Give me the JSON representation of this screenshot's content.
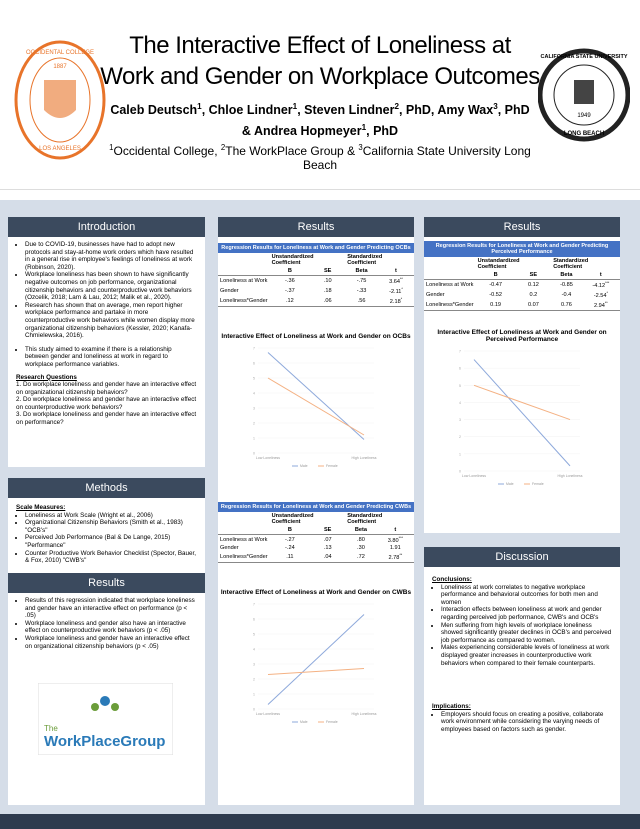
{
  "header": {
    "title": "The Interactive Effect of Loneliness at Work and Gender on Workplace Outcomes",
    "authors": [
      {
        "text": "Caleb Deutsch",
        "sup": "1"
      },
      {
        "text": ", Chloe Lindner",
        "sup": "1"
      },
      {
        "text": ", Steven Lindner",
        "sup": "2"
      },
      {
        "text": ", PhD, Amy Wax",
        "sup": "3"
      },
      {
        "text": ", PhD & Andrea Hopmeyer",
        "sup": "1"
      },
      {
        "text": ", PhD"
      }
    ],
    "affiliations": [
      {
        "sup": "1",
        "text": "Occidental College, "
      },
      {
        "sup": "2",
        "text": "The WorkPlace Group & "
      },
      {
        "sup": "3",
        "text": "California State University Long Beach"
      }
    ],
    "logo_left": {
      "top": "OCCIDENTAL COLLEGE",
      "year": "1887",
      "bottom": "LOS ANGELES"
    },
    "logo_right": {
      "top": "CALIFORNIA STATE UNIVERSITY",
      "year": "1949",
      "bottom": "LONG BEACH"
    }
  },
  "intro": {
    "heading": "Introduction",
    "bullets": [
      "Due to COVID-19, businesses have had to adopt new protocols and stay-at-home work orders which have resulted in a general rise in employee's feelings of loneliness at work (Robinson, 2020).",
      "Workplace loneliness has been shown to have significantly negative outcomes on job performance, organizational citizenship behaviors and counterproductive work behaviors (Ozcelik, 2018; Lam & Lau, 2012; Malik et al., 2020).",
      "Research has shown that on average, men report higher workplace performance and partake in more counterproductive work behaviors while women display more organizational citizenship behaviors (Kessler, 2020; Kanafa-Chmielewska, 2016)."
    ],
    "aim": "This study aimed to examine if there is a relationship between gender and loneliness at work in regard to workplace performance variables.",
    "rq_heading": "Research Questions",
    "rq": [
      "1. Do workplace loneliness and gender have an interactive effect on organizational citizenship behaviors?",
      "2. Do workplace loneliness and gender have an interactive effect on counterproductive work behaviors?",
      "3. Do workplace loneliness and gender have an interactive effect on performance?"
    ]
  },
  "methods": {
    "heading": "Methods",
    "subheading": "Scale Measures:",
    "bullets": [
      "Loneliness at Work Scale (Wright et al., 2006)",
      "Organizational Citizenship Behaviors (Smith et al., 1983) \"OCB's\"",
      "Perceived Job Performance (Bal & De Lange, 2015) \"Performance\"",
      "Counter Productive Work Behavior Checklist (Spector, Bauer, & Fox, 2010) \"CWB's\""
    ]
  },
  "results_left": {
    "heading": "Results",
    "bullets": [
      "Results of this regression indicated that workplace loneliness and gender have an interactive effect on performance (p < .05)",
      "Workplace loneliness and gender also have an interactive effect on counterproductive work behaviors (p < .05)",
      "Workplace loneliness and gender have an interactive effect on organizational citizenship behaviors (p < .05)"
    ]
  },
  "logo_wpg": {
    "pre": "The",
    "name": "WorkPlaceGroup"
  },
  "results_mid": {
    "heading": "Results"
  },
  "results_right": {
    "heading": "Results"
  },
  "tables": [
    {
      "title": "Regression Results for Loneliness at Work and Gender Predicting OCBs",
      "group1": "Unstandardized Coefficient",
      "group2": "Standardized Coefficient",
      "columns": [
        "B",
        "SE",
        "Beta",
        "t"
      ],
      "rows": [
        {
          "label": "Loneliness at Work",
          "cells": [
            "-.36",
            ".10",
            "-.75",
            "3.64"
          ],
          "sig": "**"
        },
        {
          "label": "Gender",
          "cells": [
            "-.37",
            ".18",
            "-.33",
            "-2.11"
          ],
          "sig": "*"
        },
        {
          "label": "Loneliness*Gender",
          "cells": [
            ".12",
            ".06",
            ".56",
            "2.18"
          ],
          "sig": "*"
        }
      ]
    },
    {
      "title": "Regression Results for Loneliness at Work and Gender Predicting CWBs",
      "group1": "Unstandardized Coefficient",
      "group2": "Standardized Coefficient",
      "columns": [
        "B",
        "SE",
        "Beta",
        "t"
      ],
      "rows": [
        {
          "label": "Loneliness at Work",
          "cells": [
            "-.27",
            ".07",
            ".80",
            "3.80"
          ],
          "sig": "***"
        },
        {
          "label": "Gender",
          "cells": [
            "-.24",
            ".13",
            ".30",
            "1.91"
          ]
        },
        {
          "label": "Loneliness*Gender",
          "cells": [
            ".11",
            ".04",
            ".72",
            "2.78"
          ],
          "sig": "**"
        }
      ]
    },
    {
      "title": "Regression Results for Loneliness at Work and Gender Predicting Perceived Performance",
      "group1": "Unstandardized Coefficient",
      "group2": "Standardized Coefficient",
      "columns": [
        "B",
        "SE",
        "Beta",
        "t"
      ],
      "rows": [
        {
          "label": "Loneliness at Work",
          "cells": [
            "-0.47",
            "0.12",
            "-0.85",
            "-4.12"
          ],
          "sig": "***"
        },
        {
          "label": "Gender",
          "cells": [
            "-0.52",
            "0.2",
            "-0.4",
            "-2.54"
          ],
          "sig": "*"
        },
        {
          "label": "Loneliness*Gender",
          "cells": [
            "0.19",
            "0.07",
            "0.76",
            "2.94"
          ],
          "sig": "**"
        }
      ]
    }
  ],
  "chart_data": [
    {
      "type": "line",
      "title": "Interactive Effect of Loneliness at Work and Gender on OCBs",
      "categories": [
        "Low Loneliness",
        "High Loneliness"
      ],
      "series": [
        {
          "name": "Male",
          "color": "#8ea9db",
          "values": [
            6.7,
            0.9
          ]
        },
        {
          "name": "Female",
          "color": "#f4b183",
          "values": [
            5.0,
            1.2
          ]
        }
      ],
      "ylim": [
        0,
        7
      ],
      "yticks": [
        0,
        1,
        2,
        3,
        4,
        5,
        6,
        7
      ]
    },
    {
      "type": "line",
      "title": "Interactive Effect of Loneliness at Work and Gender on Perceived Performance",
      "categories": [
        "Low Loneliness",
        "High Loneliness"
      ],
      "series": [
        {
          "name": "Male",
          "color": "#8ea9db",
          "values": [
            6.5,
            0.3
          ]
        },
        {
          "name": "Female",
          "color": "#f4b183",
          "values": [
            5.0,
            3.0
          ]
        }
      ],
      "ylim": [
        0,
        7
      ],
      "yticks": [
        0,
        1,
        2,
        3,
        4,
        5,
        6,
        7
      ]
    },
    {
      "type": "line",
      "title": "Interactive Effect of Loneliness at Work and Gender on CWBs",
      "categories": [
        "Low Loneliness",
        "High Loneliness"
      ],
      "series": [
        {
          "name": "Male",
          "color": "#8ea9db",
          "values": [
            0.3,
            6.3
          ]
        },
        {
          "name": "Female",
          "color": "#f4b183",
          "values": [
            2.3,
            2.7
          ]
        }
      ],
      "ylim": [
        0,
        7
      ],
      "yticks": [
        0,
        1,
        2,
        3,
        4,
        5,
        6,
        7
      ]
    }
  ],
  "discussion": {
    "heading": "Discussion",
    "conclusions_heading": "Conclusions:",
    "conclusions": [
      "Loneliness at work correlates to negative workplace performance and behavioral outcomes for both men and women",
      "Interaction effects between loneliness at work and gender regarding perceived job performance, CWB's and OCB's",
      "Men suffering from high levels of workplace loneliness showed significantly greater declines in OCB's and perceived job performance as compared to women.",
      "Males experiencing considerable levels of loneliness at work displayed greater increases in counterproductive work behaviors when compared to their female counterparts."
    ],
    "implications_heading": "Implications:",
    "implications": [
      "Employers should focus on creating a positive, collaborate work environment while considering the varying needs of employees based on factors such as gender."
    ]
  }
}
